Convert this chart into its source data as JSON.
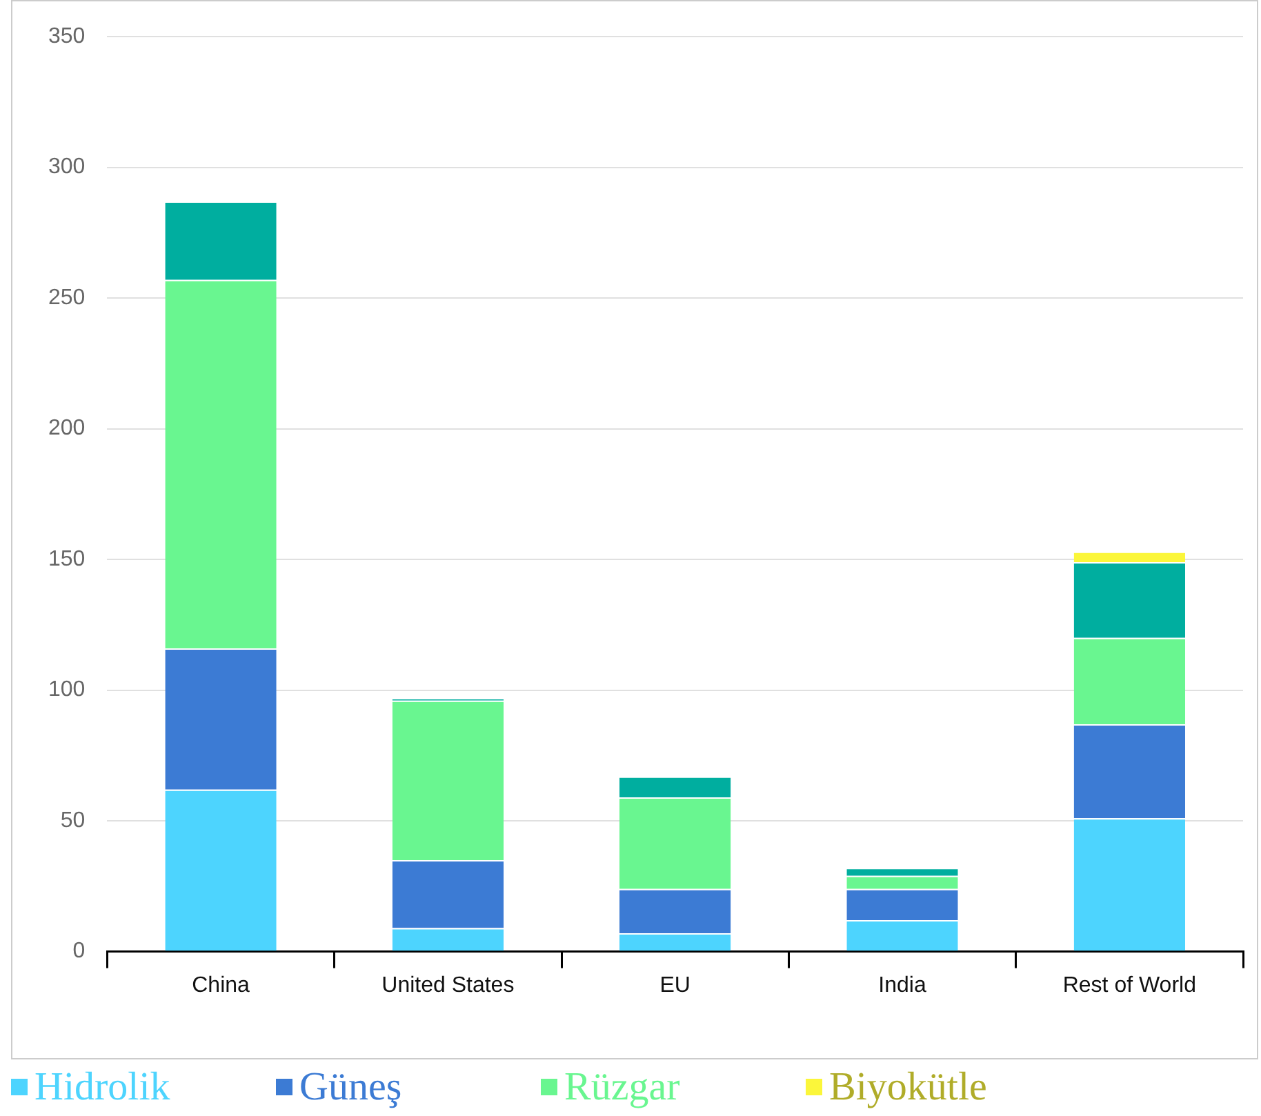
{
  "chart_data": {
    "type": "bar",
    "stacked": true,
    "categories": [
      "China",
      "United States",
      "EU",
      "India",
      "Rest of World"
    ],
    "series": [
      {
        "name": "Hidrolik",
        "color": "#4dd4fe",
        "values": [
          62,
          9,
          7,
          12,
          51
        ]
      },
      {
        "name": "Güneş",
        "color": "#3c7bd4",
        "values": [
          54,
          26,
          17,
          12,
          36
        ]
      },
      {
        "name": "Rüzgar",
        "color": "#69f690",
        "values": [
          141,
          61,
          35,
          5,
          33
        ]
      },
      {
        "color": "#00ae9f",
        "values": [
          30,
          1,
          8,
          3,
          29
        ]
      },
      {
        "name": "Biyokütle",
        "color": "#fbf63a",
        "values": [
          0,
          0,
          0,
          0,
          4
        ]
      }
    ],
    "ylim": [
      0,
      350
    ],
    "yticks": [
      0,
      50,
      100,
      150,
      200,
      250,
      300,
      350
    ],
    "grid": "y",
    "legend": "bottom"
  }
}
